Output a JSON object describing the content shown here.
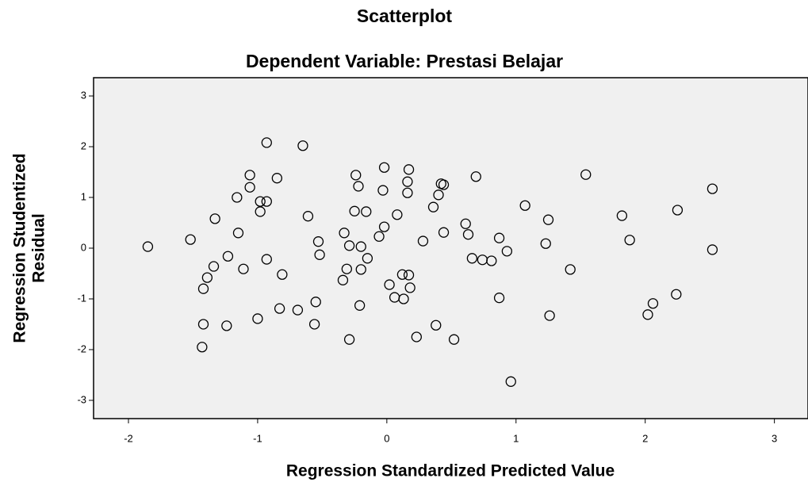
{
  "chart_data": {
    "type": "scatter",
    "title": "Scatterplot",
    "subtitle": "Dependent Variable: Prestasi Belajar",
    "xlabel": "Regression Standardized Predicted Value",
    "ylabel": [
      "Regression Studentized",
      "Residual"
    ],
    "color": "#000000",
    "background": "#f0f0f0",
    "grid": false,
    "xlim": [
      -2.27,
      3.26
    ],
    "xticks": [
      -2,
      -1,
      0,
      1,
      2,
      3
    ],
    "ylim": [
      -3.36,
      3.36
    ],
    "yticks": [
      -3,
      -2,
      -1,
      0,
      1,
      2,
      3
    ],
    "x": [
      -1.85,
      -1.52,
      -1.33,
      -1.34,
      -1.39,
      -1.42,
      -1.42,
      -1.43,
      -1.24,
      -1.23,
      -1.16,
      -1.15,
      -1.11,
      -1.06,
      -1.06,
      -0.98,
      -0.98,
      -0.93,
      -0.93,
      -0.93,
      -1.0,
      -0.85,
      -0.81,
      -0.83,
      -0.69,
      -0.65,
      -0.61,
      -0.56,
      -0.55,
      -0.53,
      -0.52,
      -0.33,
      -0.34,
      -0.31,
      -0.29,
      -0.29,
      -0.24,
      -0.25,
      -0.22,
      -0.21,
      -0.2,
      -0.2,
      -0.16,
      -0.15,
      -0.06,
      -0.03,
      -0.02,
      -0.02,
      0.02,
      0.06,
      0.08,
      0.12,
      0.13,
      0.16,
      0.16,
      0.17,
      0.17,
      0.18,
      0.23,
      0.28,
      0.36,
      0.38,
      0.4,
      0.42,
      0.44,
      0.44,
      0.52,
      0.61,
      0.63,
      0.66,
      0.69,
      0.74,
      0.81,
      0.87,
      0.87,
      0.93,
      0.96,
      1.07,
      1.23,
      1.25,
      1.26,
      1.42,
      1.54,
      1.82,
      1.88,
      2.02,
      2.06,
      2.24,
      2.25,
      2.52,
      2.52
    ],
    "values": [
      0.03,
      0.17,
      0.58,
      -0.36,
      -0.58,
      -0.8,
      -1.5,
      -1.95,
      -1.53,
      -0.16,
      1.0,
      0.3,
      -0.41,
      1.2,
      1.44,
      0.92,
      0.72,
      0.92,
      2.08,
      -0.22,
      -1.39,
      1.38,
      -0.52,
      -1.19,
      -1.22,
      2.02,
      0.63,
      -1.5,
      -1.06,
      0.13,
      -0.13,
      0.3,
      -0.63,
      -0.41,
      0.05,
      -1.8,
      1.44,
      0.73,
      1.22,
      -1.13,
      -0.42,
      0.03,
      0.72,
      -0.2,
      0.23,
      1.14,
      1.59,
      0.42,
      -0.72,
      -0.97,
      0.66,
      -0.52,
      -1.0,
      1.09,
      1.31,
      1.55,
      -0.53,
      -0.78,
      -1.75,
      0.14,
      0.81,
      -1.52,
      1.05,
      1.27,
      1.25,
      0.31,
      -1.8,
      0.48,
      0.27,
      -0.2,
      1.41,
      -0.23,
      -0.25,
      -0.98,
      0.2,
      -0.06,
      -2.63,
      0.84,
      0.09,
      0.56,
      -1.33,
      -0.42,
      1.45,
      0.64,
      0.16,
      -1.31,
      -1.09,
      -0.91,
      0.75,
      1.17,
      -0.03
    ]
  }
}
